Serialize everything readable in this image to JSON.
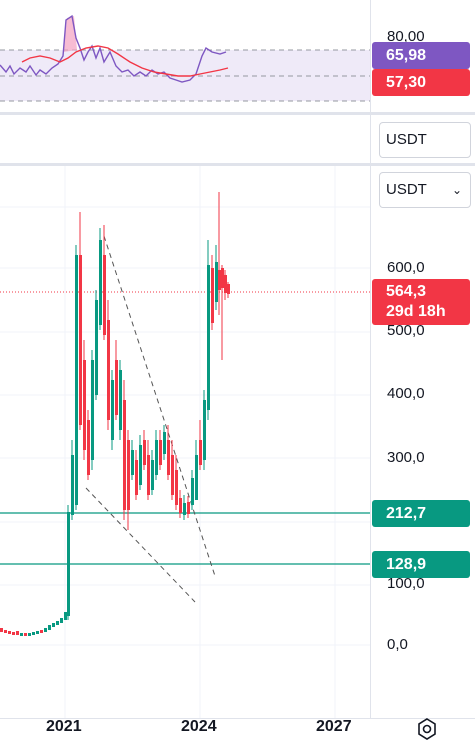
{
  "rsi_pane": {
    "level_upper": "80,00",
    "rsi_value": "65,98",
    "rsi_ma_value": "57,30",
    "colors": {
      "rsi_line": "#7e57c2",
      "ma_line": "#f23645",
      "band": "#efeaf8"
    }
  },
  "volume_pane": {
    "currency_label": "USDT"
  },
  "main_pane": {
    "currency_select": "USDT",
    "price_axis": [
      "600,0",
      "500,0",
      "400,0",
      "300,0",
      "100,0",
      "0,0"
    ],
    "current_price": "564,3",
    "countdown": "29d 18h",
    "level_upper": "212,7",
    "level_lower": "128,9",
    "colors": {
      "up": "#089981",
      "down": "#f23645",
      "level": "#089981"
    }
  },
  "time_axis": {
    "labels": [
      "2021",
      "2024",
      "2027"
    ]
  },
  "settings_icon": "gear-icon"
}
